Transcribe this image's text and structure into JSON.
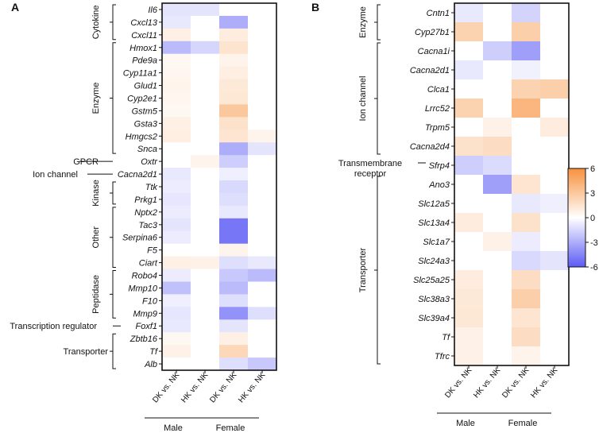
{
  "chart_data": [
    {
      "type": "heatmap",
      "panel": "A",
      "columns": [
        "DK vs. NK",
        "HK vs. NK",
        "DK vs. NK",
        "HK vs. NK"
      ],
      "column_groups": [
        "Male",
        "Female"
      ],
      "rows": [
        "Il6",
        "Cxcl13",
        "Cxcl11",
        "Hmox1",
        "Pde9a",
        "Cyp11a1",
        "Glud1",
        "Cyp2e1",
        "Gstm5",
        "Gsta3",
        "Hmgcs2",
        "Snca",
        "Oxtr",
        "Cacna2d1",
        "Ttk",
        "Prkg1",
        "Nptx2",
        "Tac3",
        "Serpina6",
        "F5",
        "Ciart",
        "Robo4",
        "Mmp10",
        "F10",
        "Mmp9",
        "Foxf1",
        "Zbtb16",
        "Tf",
        "Alb"
      ],
      "values": [
        [
          -1.0,
          -1.0,
          0,
          0
        ],
        [
          -0.8,
          0,
          -3.0,
          0
        ],
        [
          0.8,
          0,
          1.0,
          0
        ],
        [
          -2.5,
          -1.5,
          1.5,
          0
        ],
        [
          0.4,
          0,
          0.6,
          0
        ],
        [
          0.5,
          0,
          0.9,
          0
        ],
        [
          0.6,
          0,
          1.2,
          0
        ],
        [
          0.5,
          0,
          1.3,
          0
        ],
        [
          0.4,
          0,
          3.0,
          0
        ],
        [
          0.8,
          0,
          1.6,
          0
        ],
        [
          0.9,
          0,
          1.4,
          0.6
        ],
        [
          0,
          0,
          -3.0,
          -1.0
        ],
        [
          0,
          0.6,
          -1.8,
          0
        ],
        [
          -0.8,
          0,
          -0.6,
          0
        ],
        [
          -0.7,
          0,
          -1.4,
          0
        ],
        [
          -0.9,
          0,
          -1.2,
          0
        ],
        [
          -0.7,
          0,
          -0.8,
          0
        ],
        [
          -1.0,
          0,
          -5.0,
          0
        ],
        [
          -0.7,
          0,
          -5.0,
          0
        ],
        [
          0,
          0,
          0.6,
          0
        ],
        [
          0.8,
          0.7,
          -1.2,
          -0.8
        ],
        [
          -0.7,
          0,
          -2.0,
          -2.5
        ],
        [
          -2.3,
          0,
          -2.5,
          0
        ],
        [
          -0.6,
          0,
          -1.2,
          0
        ],
        [
          -0.9,
          0,
          -4.0,
          -1.2
        ],
        [
          -0.8,
          0,
          -1.0,
          0
        ],
        [
          0.4,
          0,
          0.8,
          0
        ],
        [
          0.7,
          0,
          2.2,
          0
        ],
        [
          0,
          0,
          -1.2,
          -2.0
        ]
      ],
      "categories": [
        {
          "label": "Cytokine",
          "first": 0,
          "last": 2
        },
        {
          "label": "Enzyme",
          "first": 3,
          "last": 11
        },
        {
          "label": "GPCR",
          "first": 12,
          "last": 12
        },
        {
          "label": "Ion channel",
          "first": 13,
          "last": 13
        },
        {
          "label": "Kinase",
          "first": 14,
          "last": 15
        },
        {
          "label": "Other",
          "first": 16,
          "last": 20
        },
        {
          "label": "Peptidase",
          "first": 21,
          "last": 24
        },
        {
          "label": "Transcription regulator",
          "first": 25,
          "last": 25
        },
        {
          "label": "Transporter",
          "first": 26,
          "last": 28
        }
      ]
    },
    {
      "type": "heatmap",
      "panel": "B",
      "columns": [
        "DK vs. NK",
        "HK vs. NK",
        "DK vs. NK",
        "HK vs. NK"
      ],
      "column_groups": [
        "Male",
        "Female"
      ],
      "rows": [
        "Cntn1",
        "Cyp27b1",
        "Cacna1i",
        "Cacna2d1",
        "Clca1",
        "Lrrc52",
        "Trpm5",
        "Cacna2d4",
        "Sfrp4",
        "Ano3",
        "Slc12a5",
        "Slc13a4",
        "Slc1a7",
        "Slc24a3",
        "Slc25a25",
        "Slc38a3",
        "Slc39a4",
        "Tf",
        "Tfrc"
      ],
      "values": [
        [
          -0.8,
          0,
          -1.6,
          0
        ],
        [
          2.4,
          0,
          2.6,
          0
        ],
        [
          0,
          -1.8,
          -3.5,
          0
        ],
        [
          -0.8,
          0,
          -0.5,
          0
        ],
        [
          0,
          0,
          2.4,
          2.6
        ],
        [
          2.4,
          0,
          4.0,
          0
        ],
        [
          0,
          0.7,
          0,
          1.0
        ],
        [
          1.6,
          1.9,
          0,
          0
        ],
        [
          -1.8,
          -1.3,
          0,
          0
        ],
        [
          0,
          -3.5,
          1.4,
          0
        ],
        [
          0,
          0,
          -0.8,
          -0.6
        ],
        [
          1.0,
          0,
          1.6,
          0
        ],
        [
          0,
          0.7,
          -0.7,
          0
        ],
        [
          0,
          0,
          -1.4,
          -1.0
        ],
        [
          1.0,
          0,
          1.9,
          0
        ],
        [
          1.2,
          0,
          2.6,
          0
        ],
        [
          1.3,
          0,
          1.4,
          0
        ],
        [
          0.7,
          0,
          1.9,
          0
        ],
        [
          0.7,
          0,
          0.6,
          0
        ]
      ],
      "categories": [
        {
          "label": "Enzyme",
          "first": 0,
          "last": 1
        },
        {
          "label": "Ion channel",
          "first": 2,
          "last": 7
        },
        {
          "label": "Transmembrane receptor",
          "first": 8,
          "last": 8
        },
        {
          "label": "Transporter",
          "first": 9,
          "last": 18
        }
      ]
    }
  ],
  "colorbar": {
    "min": -6,
    "max": 6,
    "ticks": [
      6,
      3,
      0,
      -3,
      -6
    ],
    "low_color": "#5b5bf5",
    "mid_color": "#ffffff",
    "high_color": "#f7913d"
  }
}
